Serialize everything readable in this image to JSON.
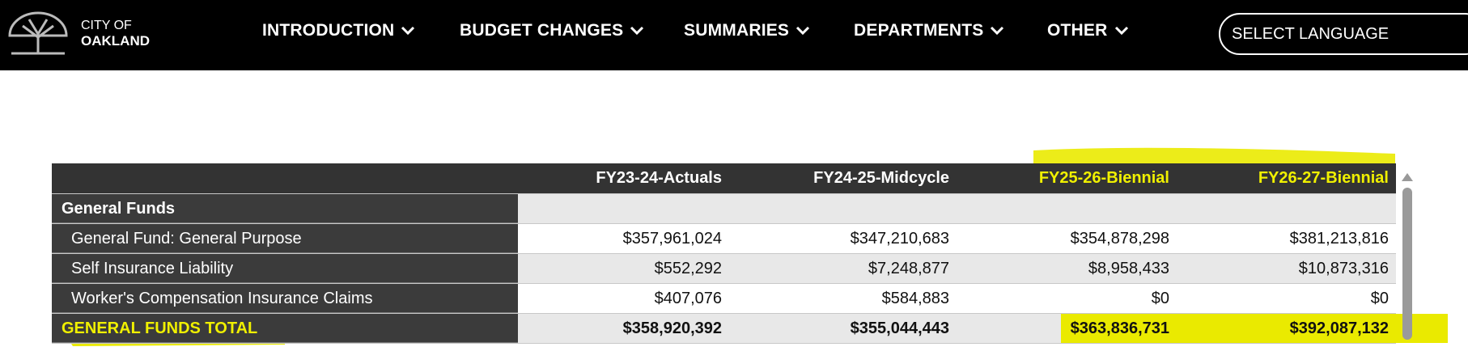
{
  "header": {
    "logo": {
      "line1": "CITY OF",
      "line2": "OAKLAND"
    },
    "nav": [
      "INTRODUCTION",
      "BUDGET CHANGES",
      "SUMMARIES",
      "DEPARTMENTS",
      "OTHER"
    ],
    "language": "SELECT LANGUAGE"
  },
  "table": {
    "columns": [
      "FY23-24-Actuals",
      "FY24-25-Midcycle",
      "FY25-26-Biennial",
      "FY26-27-Biennial"
    ],
    "rows": [
      [
        "General Funds",
        "",
        "",
        "",
        ""
      ],
      [
        "General Fund: General Purpose",
        "$357,961,024",
        "$347,210,683",
        "$354,878,298",
        "$381,213,816"
      ],
      [
        "Self Insurance Liability",
        "$552,292",
        "$7,248,877",
        "$8,958,433",
        "$10,873,316"
      ],
      [
        "Worker's Compensation Insurance Claims",
        "$407,076",
        "$584,883",
        "$0",
        "$0"
      ],
      [
        "GENERAL FUNDS TOTAL",
        "$358,920,392",
        "$355,044,443",
        "$363,836,731",
        "$392,087,132"
      ]
    ]
  }
}
